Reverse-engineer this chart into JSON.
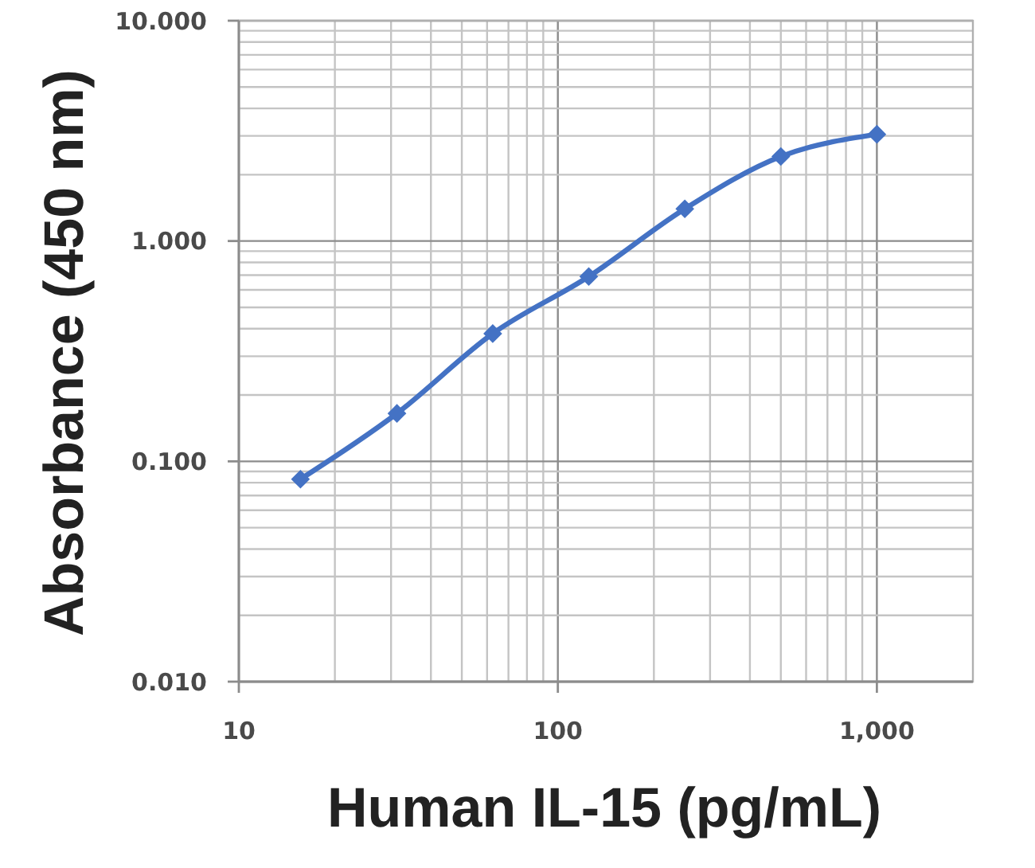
{
  "chart_data": {
    "type": "line",
    "xlabel": "Human IL-15 (pg/mL)",
    "ylabel": "Absorbance (450 nm)",
    "x": [
      15.6,
      31.3,
      62.5,
      125,
      250,
      500,
      1000
    ],
    "series": [
      {
        "color": "#4472c4",
        "values": [
          0.083,
          0.165,
          0.38,
          0.69,
          1.4,
          2.42,
          3.05
        ]
      }
    ],
    "log": "xy",
    "xlim": [
      10,
      2000
    ],
    "ylim": [
      0.01,
      10
    ],
    "xticks": [
      10,
      {
        "value": 20,
        "label": null
      },
      {
        "value": 30,
        "label": null
      },
      {
        "value": 40,
        "label": null
      },
      {
        "value": 50,
        "label": null
      },
      {
        "value": 60,
        "label": null
      },
      {
        "value": 70,
        "label": null
      },
      {
        "value": 80,
        "label": null
      },
      {
        "value": 90,
        "label": null
      },
      100,
      {
        "value": 200,
        "label": null
      },
      {
        "value": 300,
        "label": null
      },
      {
        "value": 400,
        "label": null
      },
      {
        "value": 500,
        "label": null
      },
      {
        "value": 600,
        "label": null
      },
      {
        "value": 700,
        "label": null
      },
      {
        "value": 800,
        "label": null
      },
      {
        "value": 900,
        "label": null
      },
      {
        "value": 1000,
        "label": "1,000"
      }
    ],
    "yticks": [
      {
        "value": 0.01,
        "label": "0.010"
      },
      {
        "value": 0.02,
        "label": null
      },
      {
        "value": 0.03,
        "label": null
      },
      {
        "value": 0.04,
        "label": null
      },
      {
        "value": 0.05,
        "label": null
      },
      {
        "value": 0.06,
        "label": null
      },
      {
        "value": 0.07,
        "label": null
      },
      {
        "value": 0.08,
        "label": null
      },
      {
        "value": 0.09,
        "label": null
      },
      {
        "value": 0.1,
        "label": "0.100"
      },
      {
        "value": 0.2,
        "label": null
      },
      {
        "value": 0.3,
        "label": null
      },
      {
        "value": 0.4,
        "label": null
      },
      {
        "value": 0.5,
        "label": null
      },
      {
        "value": 0.6,
        "label": null
      },
      {
        "value": 0.7,
        "label": null
      },
      {
        "value": 0.8,
        "label": null
      },
      {
        "value": 0.9,
        "label": null
      },
      {
        "value": 1,
        "label": "1.000"
      },
      {
        "value": 2,
        "label": null
      },
      {
        "value": 3,
        "label": null
      },
      {
        "value": 4,
        "label": null
      },
      {
        "value": 5,
        "label": null
      },
      {
        "value": 6,
        "label": null
      },
      {
        "value": 7,
        "label": null
      },
      {
        "value": 8,
        "label": null
      },
      {
        "value": 9,
        "label": null
      },
      {
        "value": 10,
        "label": "10.000"
      }
    ],
    "grid": true,
    "marker": "diamond",
    "line_style": "solid"
  }
}
